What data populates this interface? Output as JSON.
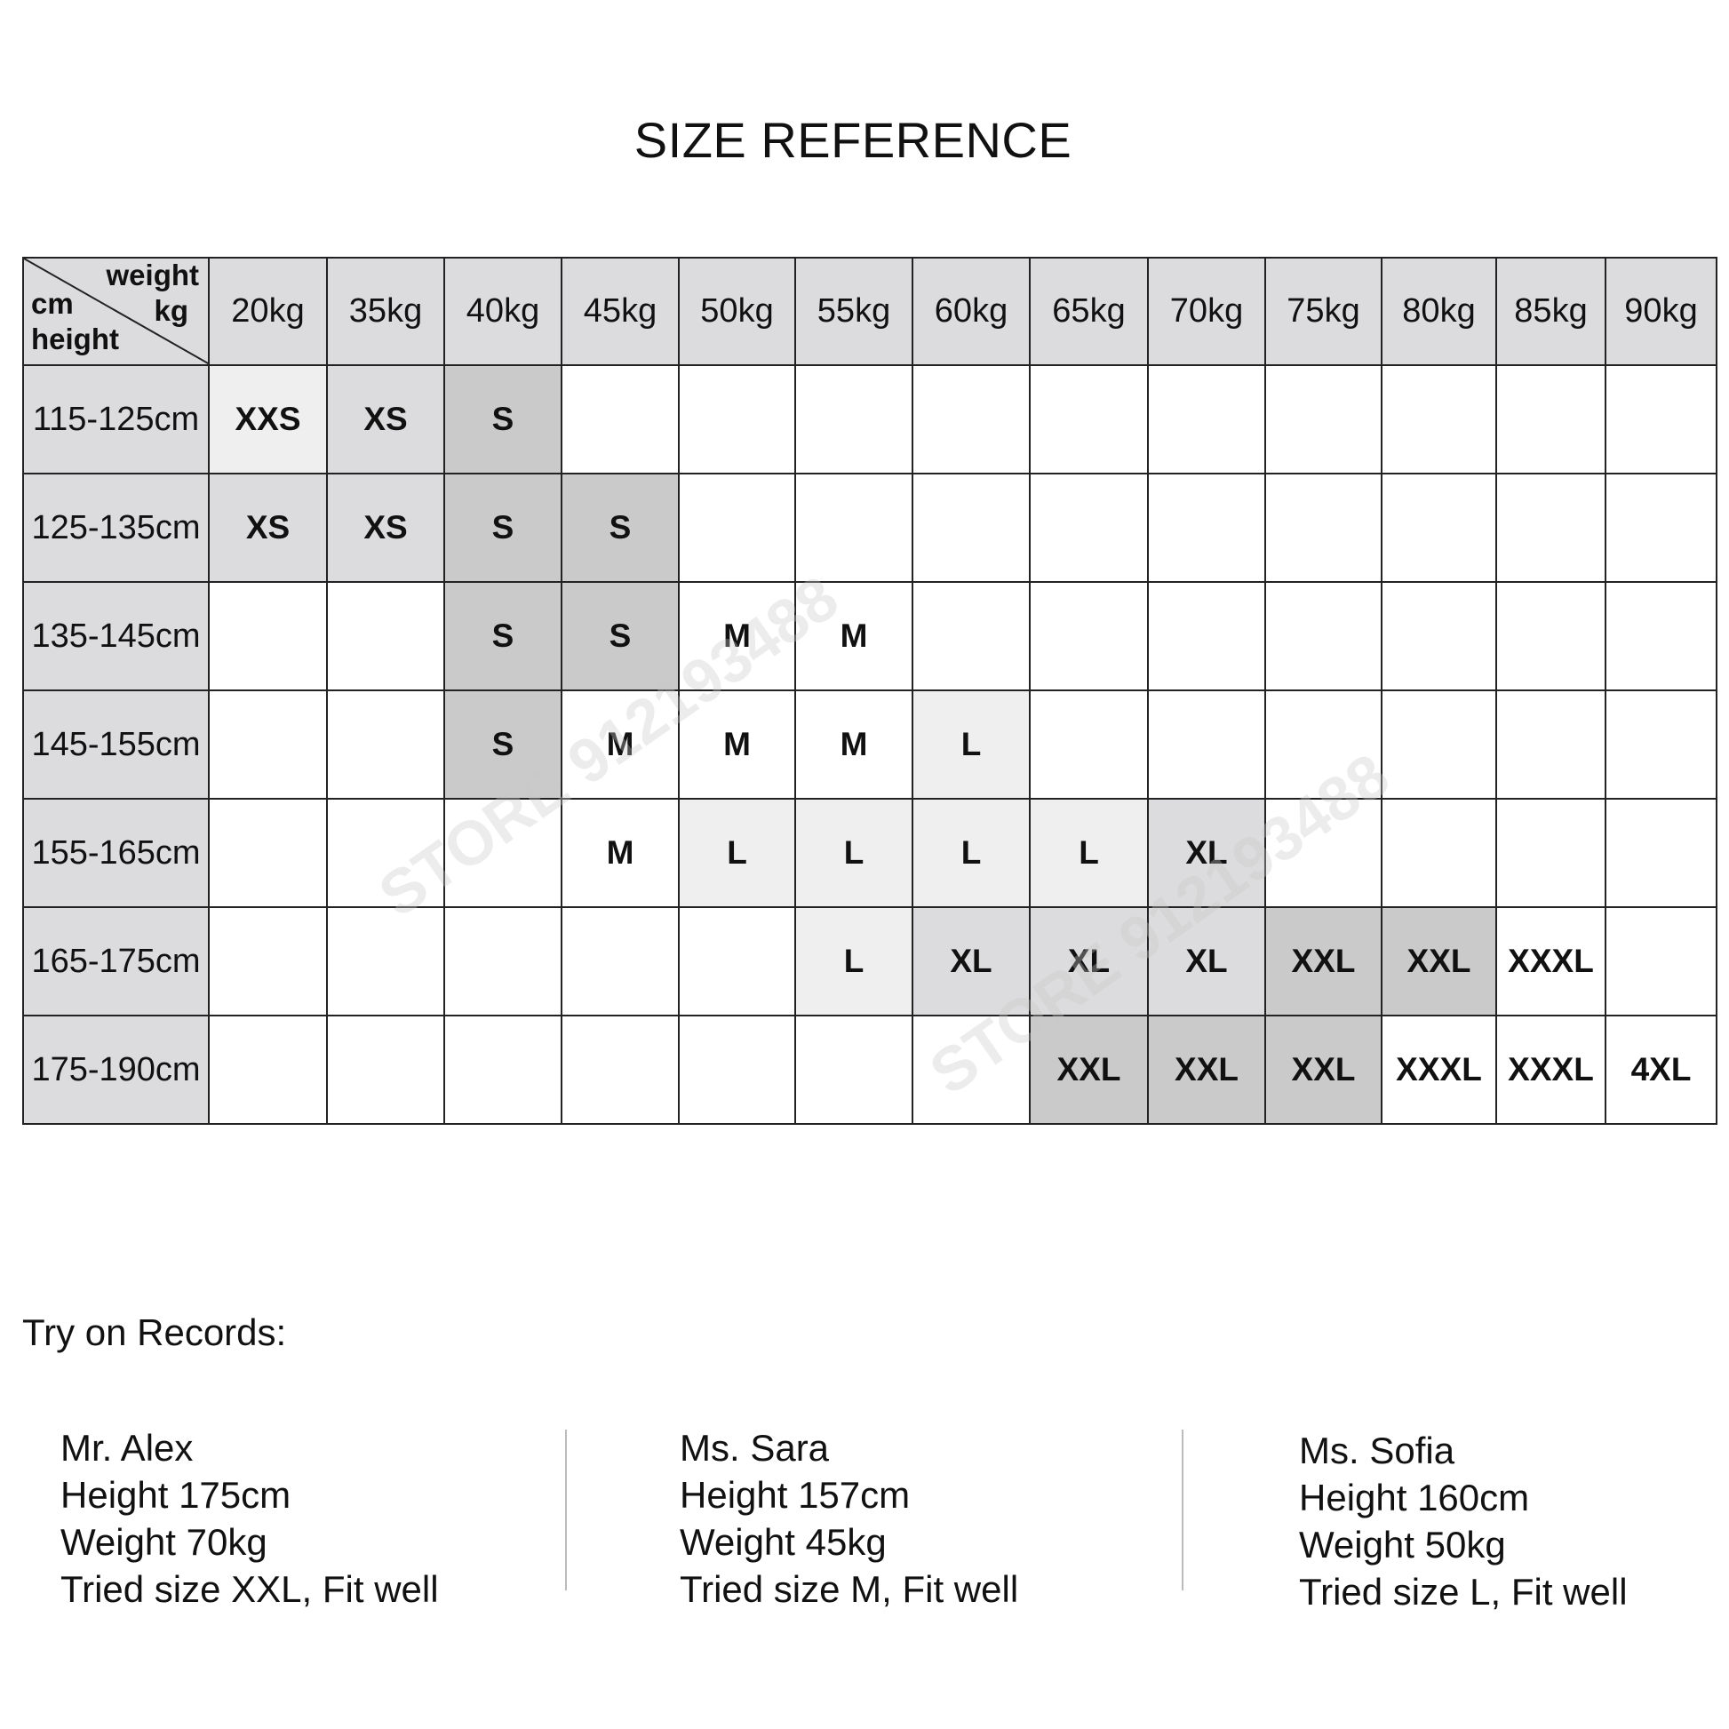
{
  "title": "SIZE REFERENCE",
  "corner": {
    "weight": "weight",
    "kg": "kg",
    "cm": "cm",
    "height": "height"
  },
  "colors": {
    "header": "#dcdcdf",
    "light": "#efefef",
    "mid": "#dcdcde",
    "dark": "#cacaca",
    "none": "#ffffff"
  },
  "weights": [
    "20kg",
    "35kg",
    "40kg",
    "45kg",
    "50kg",
    "55kg",
    "60kg",
    "65kg",
    "70kg",
    "75kg",
    "80kg",
    "85kg",
    "90kg"
  ],
  "rows": [
    {
      "height": "115-125cm",
      "cells": [
        [
          "XXS",
          "light"
        ],
        [
          "XS",
          "mid"
        ],
        [
          "S",
          "dark"
        ],
        [
          "",
          ""
        ],
        [
          "",
          ""
        ],
        [
          "",
          ""
        ],
        [
          "",
          ""
        ],
        [
          "",
          ""
        ],
        [
          "",
          ""
        ],
        [
          "",
          ""
        ],
        [
          "",
          ""
        ],
        [
          "",
          ""
        ],
        [
          "",
          ""
        ]
      ]
    },
    {
      "height": "125-135cm",
      "cells": [
        [
          "XS",
          "mid"
        ],
        [
          "XS",
          "mid"
        ],
        [
          "S",
          "dark"
        ],
        [
          "S",
          "dark"
        ],
        [
          "",
          ""
        ],
        [
          "",
          ""
        ],
        [
          "",
          ""
        ],
        [
          "",
          ""
        ],
        [
          "",
          ""
        ],
        [
          "",
          ""
        ],
        [
          "",
          ""
        ],
        [
          "",
          ""
        ],
        [
          "",
          ""
        ]
      ]
    },
    {
      "height": "135-145cm",
      "cells": [
        [
          "",
          ""
        ],
        [
          "",
          ""
        ],
        [
          "S",
          "dark"
        ],
        [
          "S",
          "dark"
        ],
        [
          "M",
          ""
        ],
        [
          "M",
          ""
        ],
        [
          "",
          ""
        ],
        [
          "",
          ""
        ],
        [
          "",
          ""
        ],
        [
          "",
          ""
        ],
        [
          "",
          ""
        ],
        [
          "",
          ""
        ],
        [
          "",
          ""
        ]
      ]
    },
    {
      "height": "145-155cm",
      "cells": [
        [
          "",
          ""
        ],
        [
          "",
          ""
        ],
        [
          "S",
          "dark"
        ],
        [
          "M",
          ""
        ],
        [
          "M",
          ""
        ],
        [
          "M",
          ""
        ],
        [
          "L",
          "light"
        ],
        [
          "",
          ""
        ],
        [
          "",
          ""
        ],
        [
          "",
          ""
        ],
        [
          "",
          ""
        ],
        [
          "",
          ""
        ],
        [
          "",
          ""
        ]
      ]
    },
    {
      "height": "155-165cm",
      "cells": [
        [
          "",
          ""
        ],
        [
          "",
          ""
        ],
        [
          "",
          ""
        ],
        [
          "M",
          ""
        ],
        [
          "L",
          "light"
        ],
        [
          "L",
          "light"
        ],
        [
          "L",
          "light"
        ],
        [
          "L",
          "light"
        ],
        [
          "XL",
          "mid"
        ],
        [
          "",
          ""
        ],
        [
          "",
          ""
        ],
        [
          "",
          ""
        ],
        [
          "",
          ""
        ]
      ]
    },
    {
      "height": "165-175cm",
      "cells": [
        [
          "",
          ""
        ],
        [
          "",
          ""
        ],
        [
          "",
          ""
        ],
        [
          "",
          ""
        ],
        [
          "",
          ""
        ],
        [
          "L",
          "light"
        ],
        [
          "XL",
          "mid"
        ],
        [
          "XL",
          "mid"
        ],
        [
          "XL",
          "mid"
        ],
        [
          "XXL",
          "dark"
        ],
        [
          "XXL",
          "dark"
        ],
        [
          "XXXL",
          ""
        ],
        [
          "",
          ""
        ]
      ]
    },
    {
      "height": "175-190cm",
      "cells": [
        [
          "",
          ""
        ],
        [
          "",
          ""
        ],
        [
          "",
          ""
        ],
        [
          "",
          ""
        ],
        [
          "",
          ""
        ],
        [
          "",
          ""
        ],
        [
          "",
          ""
        ],
        [
          "XXL",
          "dark"
        ],
        [
          "XXL",
          "dark"
        ],
        [
          "XXL",
          "dark"
        ],
        [
          "XXXL",
          ""
        ],
        [
          "XXXL",
          ""
        ],
        [
          "4XL",
          ""
        ]
      ]
    }
  ],
  "watermark": "STORE 912193488",
  "records_title": "Try on Records:",
  "records": [
    {
      "name": "Mr. Alex",
      "height": "Height 175cm",
      "weight": "Weight 70kg",
      "result": "Tried size XXL, Fit well"
    },
    {
      "name": "Ms. Sara",
      "height": "Height 157cm",
      "weight": "Weight 45kg",
      "result": "Tried size M, Fit well"
    },
    {
      "name": "Ms. Sofia",
      "height": "Height 160cm",
      "weight": "Weight 50kg",
      "result": "Tried size L, Fit well"
    }
  ]
}
